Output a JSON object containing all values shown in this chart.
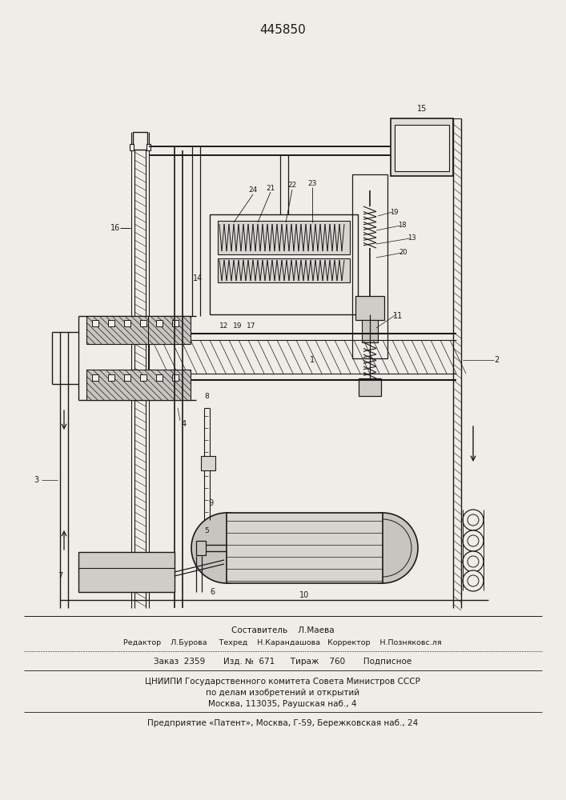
{
  "patent_number": "445850",
  "bg": "#f0ede8",
  "lc": "#1a1a1a",
  "composer_line": "Составитель    Л.Маева",
  "editor_line1": "Редактор    Л.Бурова     Техред    Н.Карандашова   Корректор    Н.Позняковс.ля",
  "order_line": "Заказ  2359       Изд. №  671      Тираж    760       Подписное",
  "publisher_line1": "ЦНИИПИ Государственного комитета Совета Министров СССР",
  "publisher_line2": "по делам изобретений и открытий",
  "publisher_line3": "Москва, 113035, Раушская наб., 4",
  "enterprise_line": "Предприятие «Патент», Москва, Г-59, Бережковская наб., 24"
}
